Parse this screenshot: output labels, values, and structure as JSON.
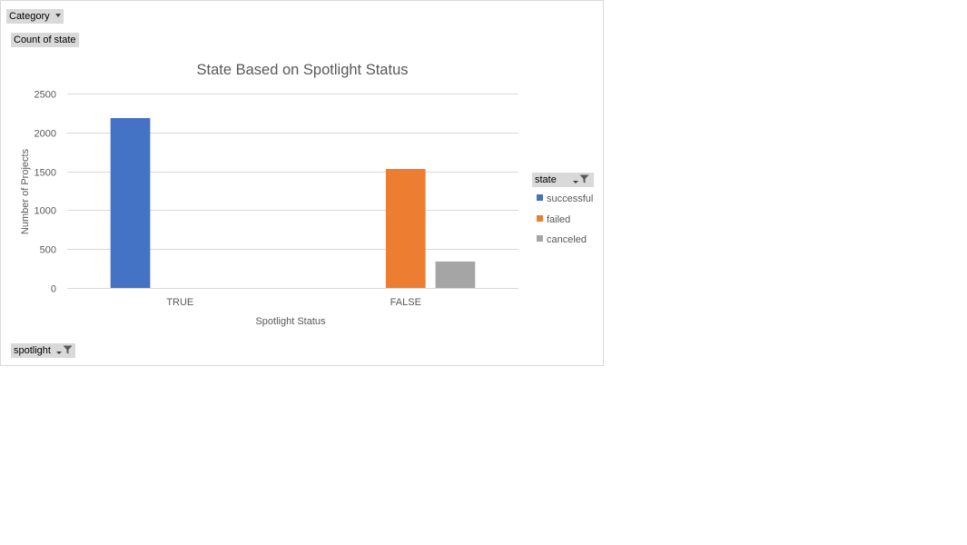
{
  "pivot": {
    "filter_field": "Category",
    "values_field": "Count of state",
    "axis_field": "spotlight",
    "legend_field": "state"
  },
  "icons": {
    "dropdown": "chevron-down-icon",
    "filter": "filter-funnel-icon"
  },
  "colors": {
    "successful": "#4472c4",
    "failed": "#ed7d31",
    "canceled": "#a5a5a5",
    "gridline": "#d9d9d9",
    "axis_text": "#595959"
  },
  "chart_data": {
    "type": "bar",
    "title": "State Based on Spotlight Status",
    "xlabel": "Spotlight Status",
    "ylabel": "Number of Projects",
    "categories": [
      "TRUE",
      "FALSE"
    ],
    "series": [
      {
        "name": "successful",
        "values": [
          2185,
          null
        ]
      },
      {
        "name": "failed",
        "values": [
          null,
          1530
        ]
      },
      {
        "name": "canceled",
        "values": [
          null,
          340
        ]
      }
    ],
    "ylim": [
      0,
      2500
    ],
    "yticks": [
      0,
      500,
      1000,
      1500,
      2000,
      2500
    ],
    "grid": true,
    "legend_position": "right"
  }
}
